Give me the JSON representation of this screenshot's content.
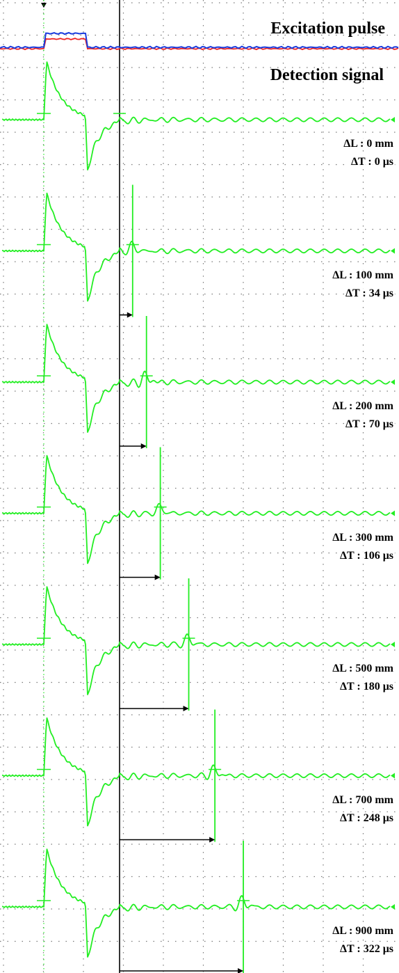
{
  "header": {
    "excitation_label": "Excitation pulse",
    "detection_label": "Detection signal"
  },
  "colors": {
    "grid": "#7a7a7a",
    "detection_trace": "#22ee22",
    "pulse_red": "#ee2222",
    "pulse_blue": "#1a3cdd",
    "reference_line": "#000000",
    "arrow": "#000000"
  },
  "chart_data": {
    "type": "line",
    "title": "",
    "xlabel": "",
    "ylabel": "",
    "grid": true,
    "series": [
      {
        "name": "Excitation pulse",
        "type": "pulse"
      },
      {
        "name": "Detection signal",
        "type": "waveform"
      }
    ],
    "panels": [
      {
        "dL_label": "ΔL : 0 mm",
        "dT_label": "ΔT : 0 μs",
        "dL_mm": 0,
        "dT_us": 0
      },
      {
        "dL_label": "ΔL : 100 mm",
        "dT_label": "ΔT : 34 μs",
        "dL_mm": 100,
        "dT_us": 34
      },
      {
        "dL_label": "ΔL : 200 mm",
        "dT_label": "ΔT : 70 μs",
        "dL_mm": 200,
        "dT_us": 70
      },
      {
        "dL_label": "ΔL : 300 mm",
        "dT_label": "ΔT : 106 μs",
        "dL_mm": 300,
        "dT_us": 106
      },
      {
        "dL_label": "ΔL : 500 mm",
        "dT_label": "ΔT : 180 μs",
        "dL_mm": 500,
        "dT_us": 180
      },
      {
        "dL_label": "ΔL : 700 mm",
        "dT_label": "ΔT : 248 μs",
        "dL_mm": 700,
        "dT_us": 248
      },
      {
        "dL_label": "ΔL : 900 mm",
        "dT_label": "ΔT : 322 μs",
        "dL_mm": 900,
        "dT_us": 322
      }
    ]
  }
}
